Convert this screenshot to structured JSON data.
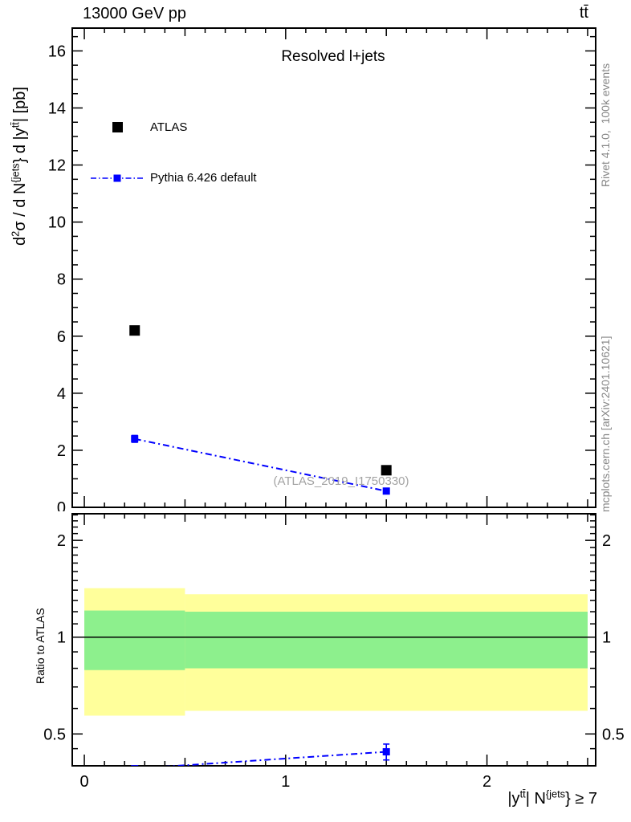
{
  "header": {
    "beam": "13000 GeV pp",
    "process": "tt̄"
  },
  "panel": {
    "title": "Resolved l+jets",
    "watermark": "(ATLAS_2019_I1750330)"
  },
  "legend": {
    "items": [
      {
        "label": "ATLAS",
        "marker": "filled-square",
        "color": "#000000"
      },
      {
        "label": "Pythia 6.426 default",
        "marker": "filled-square",
        "line": "dash-dot",
        "color": "#0000ff"
      }
    ]
  },
  "side_notes": {
    "right_top": "Rivet 4.1.0,  100k events",
    "right_bottom": "mcplots.cern.ch [arXiv:2401.10621]"
  },
  "labels": {
    "main_ylabel_parts": [
      [
        "d",
        ""
      ],
      [
        "2",
        "sup"
      ],
      [
        "σ / d N",
        ""
      ],
      [
        "{jets",
        "sup"
      ],
      [
        "} d |y",
        ""
      ],
      [
        "tt̄",
        "sup"
      ],
      [
        "| [pb]",
        ""
      ]
    ],
    "xlabel_parts": [
      [
        "|y",
        ""
      ],
      [
        "tt̄",
        "sup"
      ],
      [
        "| N",
        ""
      ],
      [
        "{jets",
        "sup"
      ],
      [
        "} ≥ 7",
        ""
      ]
    ],
    "ratio_ylabel": "Ratio to ATLAS"
  },
  "colors": {
    "accent_blue": "#0000ff",
    "band_outer_yellow": "#ffff9b",
    "band_inner_green": "#8df08d",
    "muted_text": "#878787",
    "watermark_text": "#a3a3a3",
    "axis": "#000000"
  },
  "chart_data": [
    {
      "type": "scatter",
      "panel": "main",
      "title": "Resolved l+jets",
      "ylabel": "d2sigma / d Njets d |y_ttbar| [pb]",
      "xlim": [
        -0.06,
        2.54
      ],
      "ylim": [
        0,
        16.8
      ],
      "x_data_max": 2.5,
      "xticks_labeled": [
        0,
        1,
        2
      ],
      "xtick_minor_step": 0.1,
      "yticks_labeled": [
        0,
        2,
        4,
        6,
        8,
        10,
        12,
        14,
        16
      ],
      "ytick_minor_step": 0.5,
      "grid": false,
      "series": [
        {
          "name": "ATLAS",
          "color": "#000000",
          "marker": "square",
          "marker_size": 13,
          "x": [
            0.25,
            1.5
          ],
          "y": [
            6.2,
            1.3
          ],
          "yerr": [
            0,
            0
          ]
        },
        {
          "name": "Pythia 6.426 default",
          "color": "#0000ff",
          "marker": "square",
          "marker_size": 9,
          "line": "dashdot",
          "x": [
            0.25,
            1.5
          ],
          "y": [
            2.4,
            0.57
          ],
          "yerr": [
            0.12,
            0.05
          ]
        }
      ]
    },
    {
      "type": "ratio",
      "panel": "ratio",
      "yscale": "log2",
      "xlim": [
        -0.06,
        2.54
      ],
      "ylim": [
        0.398,
        2.42
      ],
      "x_data_max": 2.5,
      "xticks_labeled": [
        0,
        1,
        2
      ],
      "xtick_minor_step": 0.1,
      "yticks_labeled": [
        0.5,
        1,
        2
      ],
      "yticks_minor": [
        0.45,
        0.6,
        0.7,
        0.8,
        0.9,
        1.1,
        1.2,
        1.3,
        1.4,
        1.5,
        1.6,
        1.7,
        1.8,
        1.9,
        2.1,
        2.2,
        2.3,
        2.4
      ],
      "reference_line": 1,
      "bands": [
        {
          "x_range": [
            0,
            0.5
          ],
          "outer_yellow": [
            0.57,
            1.42
          ],
          "inner_green": [
            0.79,
            1.21
          ]
        },
        {
          "x_range": [
            0.5,
            2.5
          ],
          "outer_yellow": [
            0.59,
            1.36
          ],
          "inner_green": [
            0.8,
            1.2
          ]
        }
      ],
      "series": [
        {
          "name": "Pythia 6.426 default / ATLAS",
          "color": "#0000ff",
          "marker": "square",
          "marker_size": 9,
          "line": "dashdot",
          "x": [
            0.25,
            1.5
          ],
          "y": [
            0.39,
            0.44
          ],
          "yerr": [
            0,
            0.025
          ]
        }
      ]
    }
  ]
}
